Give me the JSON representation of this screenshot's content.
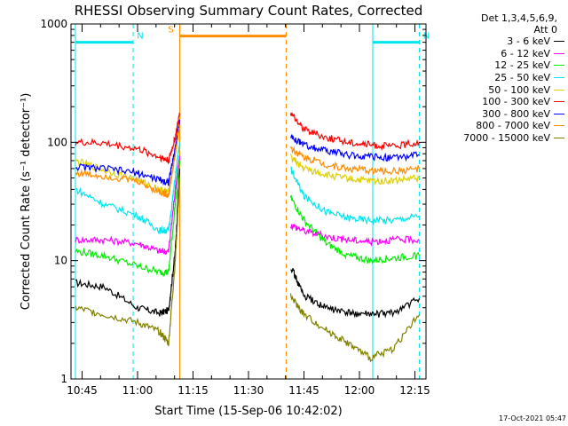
{
  "chart_data": {
    "type": "line",
    "title": "RHESSI Observing Summary Count Rates, Corrected",
    "xlabel": "Start Time (15-Sep-06 10:42:02)",
    "ylabel": "Corrected Count Rate (s⁻¹ detector⁻¹)",
    "yscale": "log",
    "ylim": [
      1,
      1000
    ],
    "yticks": [
      "1",
      "10",
      "100",
      "1000"
    ],
    "xlim_minutes": [
      10.7,
      12.3
    ],
    "xticks": [
      {
        "label": "10:45",
        "value": 10.75
      },
      {
        "label": "11:00",
        "value": 11.0
      },
      {
        "label": "11:15",
        "value": 11.25
      },
      {
        "label": "11:30",
        "value": 11.5
      },
      {
        "label": "11:45",
        "value": 11.75
      },
      {
        "label": "12:00",
        "value": 12.0
      },
      {
        "label": "12:15",
        "value": 12.25
      }
    ],
    "legend": {
      "placement": "right",
      "header": [
        "Det 1,3,4,5,6,9,",
        "Att 0"
      ]
    },
    "flags": [
      {
        "label": "N",
        "color": "#00e5ee",
        "from": 10.72,
        "to": 10.98,
        "level": 700
      },
      {
        "label": "N",
        "color": "#00e5ee",
        "from": 12.06,
        "to": 12.27,
        "level": 700
      },
      {
        "label": "S",
        "color": "#ff8c00",
        "from": 11.19,
        "to": 11.67,
        "level": 790
      }
    ],
    "vlines": [
      {
        "x": 10.72,
        "color": "#00e5ee",
        "style": "solid"
      },
      {
        "x": 10.98,
        "color": "#00e5ee",
        "style": "dashed"
      },
      {
        "x": 11.19,
        "color": "#ff8c00",
        "style": "solid"
      },
      {
        "x": 11.67,
        "color": "#ff8c00",
        "style": "dashed"
      },
      {
        "x": 12.06,
        "color": "#00e5ee",
        "style": "solid"
      },
      {
        "x": 12.27,
        "color": "#00e5ee",
        "style": "dashed"
      }
    ],
    "series": [
      {
        "name": "3 - 6 keV",
        "color": "#000000",
        "seg1": [
          [
            10.72,
            6.5
          ],
          [
            10.85,
            6
          ],
          [
            11.0,
            4
          ],
          [
            11.1,
            3.6
          ],
          [
            11.14,
            3.8
          ],
          [
            11.17,
            12
          ],
          [
            11.19,
            60
          ]
        ],
        "seg2": [
          [
            11.69,
            9
          ],
          [
            11.75,
            5
          ],
          [
            11.85,
            4
          ],
          [
            11.95,
            3.6
          ],
          [
            12.05,
            3.5
          ],
          [
            12.15,
            3.6
          ],
          [
            12.27,
            4.8
          ]
        ]
      },
      {
        "name": "6 - 12 keV",
        "color": "#ff00ff",
        "seg1": [
          [
            10.72,
            15
          ],
          [
            10.85,
            15
          ],
          [
            11.0,
            14
          ],
          [
            11.1,
            12
          ],
          [
            11.14,
            12
          ],
          [
            11.17,
            40
          ],
          [
            11.19,
            75
          ]
        ],
        "seg2": [
          [
            11.69,
            20
          ],
          [
            11.75,
            18
          ],
          [
            11.85,
            16
          ],
          [
            11.95,
            15
          ],
          [
            12.05,
            14.5
          ],
          [
            12.15,
            15
          ],
          [
            12.27,
            15
          ]
        ]
      },
      {
        "name": "12 - 25 keV",
        "color": "#00ee00",
        "seg1": [
          [
            10.72,
            12
          ],
          [
            10.85,
            11
          ],
          [
            11.0,
            9
          ],
          [
            11.1,
            8
          ],
          [
            11.14,
            8
          ],
          [
            11.17,
            30
          ],
          [
            11.19,
            70
          ]
        ],
        "seg2": [
          [
            11.69,
            34
          ],
          [
            11.75,
            22
          ],
          [
            11.85,
            14
          ],
          [
            11.95,
            11
          ],
          [
            12.05,
            10
          ],
          [
            12.15,
            10.5
          ],
          [
            12.27,
            11
          ]
        ]
      },
      {
        "name": "25 - 50 keV",
        "color": "#00e5ee",
        "seg1": [
          [
            10.72,
            40
          ],
          [
            10.85,
            30
          ],
          [
            11.0,
            24
          ],
          [
            11.1,
            18
          ],
          [
            11.14,
            18
          ],
          [
            11.17,
            50
          ],
          [
            11.19,
            100
          ]
        ],
        "seg2": [
          [
            11.69,
            60
          ],
          [
            11.75,
            35
          ],
          [
            11.85,
            26
          ],
          [
            11.95,
            23
          ],
          [
            12.05,
            22
          ],
          [
            12.15,
            22
          ],
          [
            12.27,
            24
          ]
        ]
      },
      {
        "name": "50 - 100 keV",
        "color": "#e0d000",
        "seg1": [
          [
            10.72,
            70
          ],
          [
            10.85,
            58
          ],
          [
            11.0,
            48
          ],
          [
            11.1,
            40
          ],
          [
            11.14,
            38
          ],
          [
            11.17,
            80
          ],
          [
            11.19,
            140
          ]
        ],
        "seg2": [
          [
            11.69,
            75
          ],
          [
            11.75,
            60
          ],
          [
            11.85,
            53
          ],
          [
            11.95,
            49
          ],
          [
            12.05,
            47
          ],
          [
            12.15,
            47
          ],
          [
            12.27,
            50
          ]
        ]
      },
      {
        "name": "100 - 300 keV",
        "color": "#ff0000",
        "seg1": [
          [
            10.72,
            100
          ],
          [
            10.85,
            98
          ],
          [
            11.0,
            88
          ],
          [
            11.1,
            75
          ],
          [
            11.14,
            70
          ],
          [
            11.17,
            110
          ],
          [
            11.19,
            175
          ]
        ],
        "seg2": [
          [
            11.69,
            175
          ],
          [
            11.75,
            130
          ],
          [
            11.85,
            110
          ],
          [
            11.95,
            100
          ],
          [
            12.05,
            95
          ],
          [
            12.15,
            92
          ],
          [
            12.27,
            100
          ]
        ]
      },
      {
        "name": "300 - 800 keV",
        "color": "#0000ff",
        "seg1": [
          [
            10.72,
            62
          ],
          [
            10.85,
            60
          ],
          [
            11.0,
            55
          ],
          [
            11.1,
            48
          ],
          [
            11.14,
            46
          ],
          [
            11.17,
            90
          ],
          [
            11.19,
            150
          ]
        ],
        "seg2": [
          [
            11.69,
            110
          ],
          [
            11.75,
            95
          ],
          [
            11.85,
            85
          ],
          [
            11.95,
            78
          ],
          [
            12.05,
            75
          ],
          [
            12.15,
            74
          ],
          [
            12.27,
            78
          ]
        ]
      },
      {
        "name": "800 - 7000 keV",
        "color": "#ff8c00",
        "seg1": [
          [
            10.72,
            55
          ],
          [
            10.85,
            52
          ],
          [
            11.0,
            47
          ],
          [
            11.1,
            38
          ],
          [
            11.14,
            36
          ],
          [
            11.17,
            80
          ],
          [
            11.19,
            140
          ]
        ],
        "seg2": [
          [
            11.69,
            90
          ],
          [
            11.75,
            75
          ],
          [
            11.85,
            65
          ],
          [
            11.95,
            60
          ],
          [
            12.05,
            58
          ],
          [
            12.15,
            57
          ],
          [
            12.27,
            60
          ]
        ]
      },
      {
        "name": "7000 - 15000 keV",
        "color": "#808000",
        "seg1": [
          [
            10.72,
            4
          ],
          [
            10.85,
            3.5
          ],
          [
            11.0,
            3
          ],
          [
            11.1,
            2.5
          ],
          [
            11.14,
            2
          ],
          [
            11.17,
            10
          ],
          [
            11.19,
            50
          ]
        ],
        "seg2": [
          [
            11.69,
            5
          ],
          [
            11.75,
            3.5
          ],
          [
            11.85,
            2.6
          ],
          [
            11.95,
            2
          ],
          [
            12.05,
            1.5
          ],
          [
            12.15,
            1.8
          ],
          [
            12.27,
            3.5
          ]
        ]
      }
    ]
  },
  "footer": {
    "timestamp": "17-Oct-2021 05:47"
  }
}
